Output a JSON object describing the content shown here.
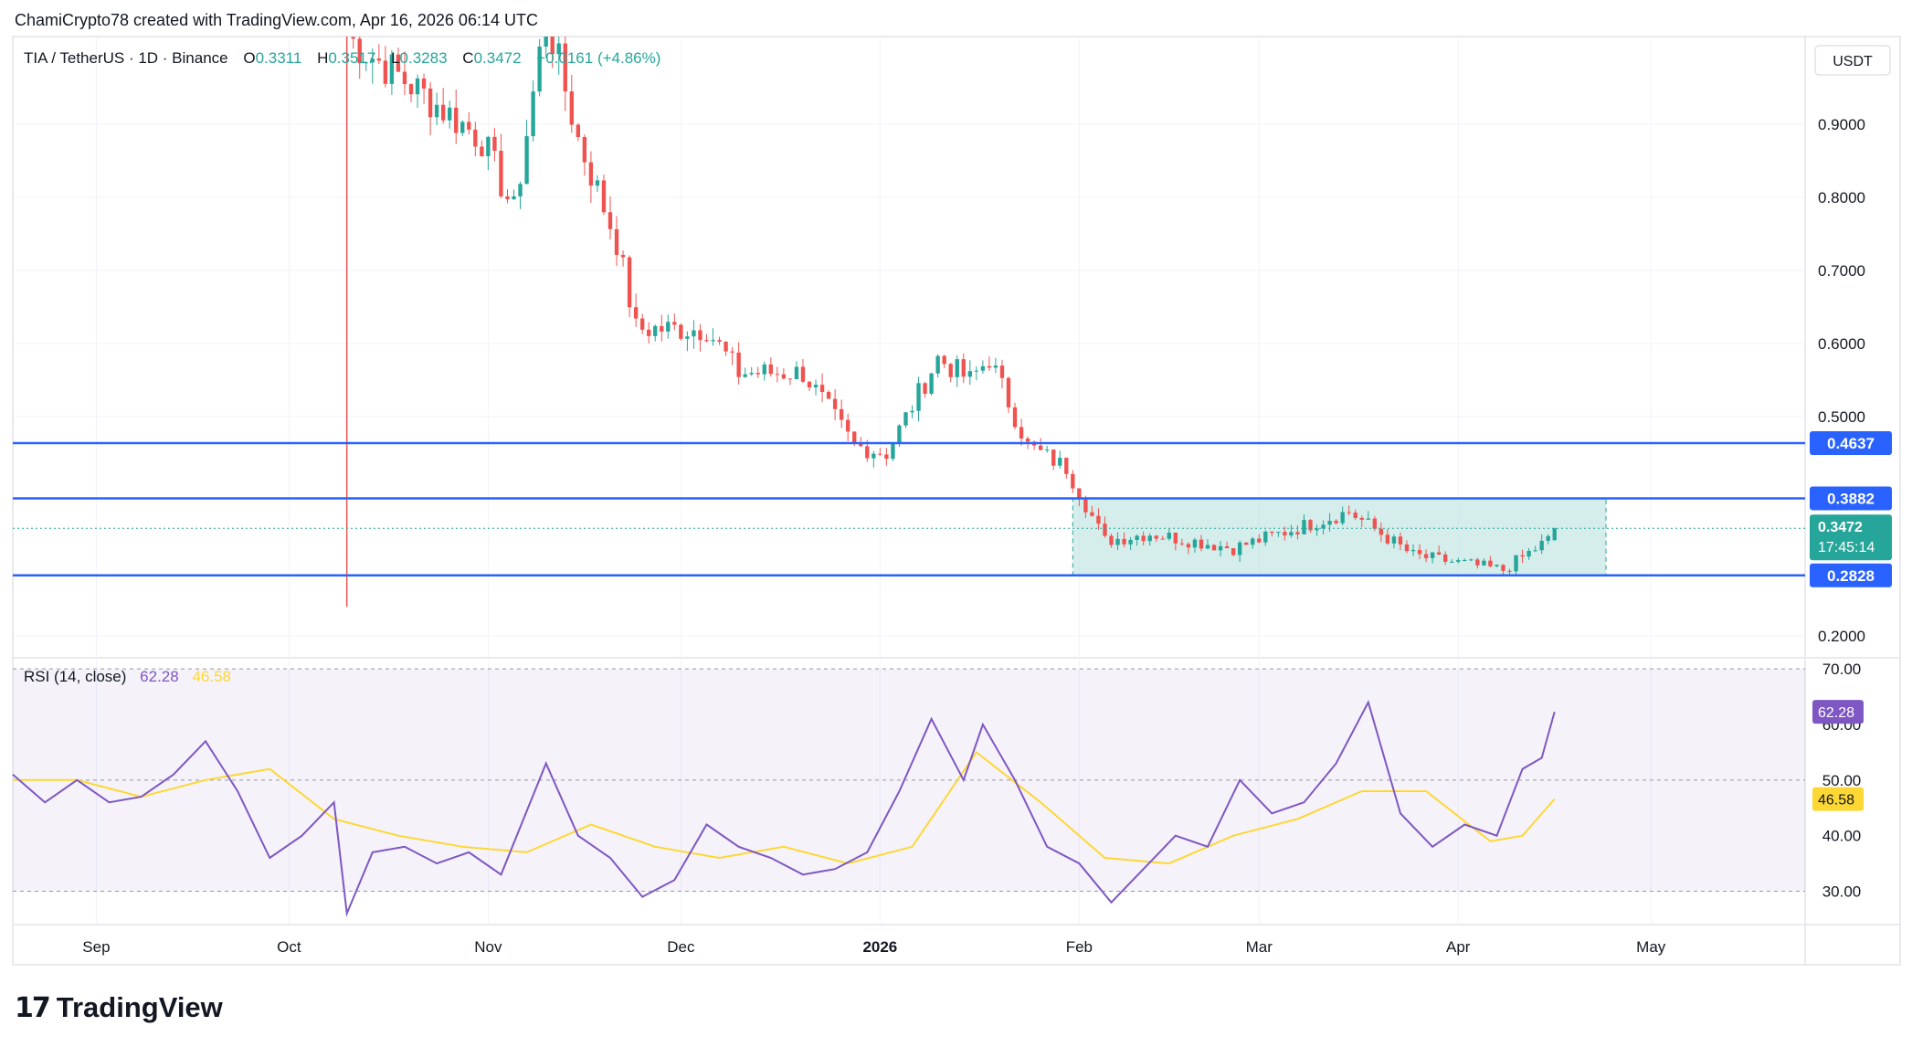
{
  "header": {
    "credit": "ChamiCrypto78 created with TradingView.com, Apr 16, 2026 06:14 UTC"
  },
  "legend": {
    "symbol": "TIA / TetherUS · 1D · Binance",
    "o_label": "O",
    "o_value": "0.3311",
    "h_label": "H",
    "h_value": "0.3517",
    "l_label": "L",
    "l_value": "0.3283",
    "c_label": "C",
    "c_value": "0.3472",
    "change": "+0.0161 (+4.86%)"
  },
  "price_axis": {
    "currency": "USDT",
    "ticks": [
      "0.9000",
      "0.8000",
      "0.7000",
      "0.6000",
      "0.5000",
      "0.2000"
    ],
    "last_price": "0.3472",
    "countdown": "17:45:14"
  },
  "levels": [
    {
      "label": "0.4637",
      "value": 0.4637
    },
    {
      "label": "0.3882",
      "value": 0.3882
    },
    {
      "label": "0.2828",
      "value": 0.2828
    }
  ],
  "rsi": {
    "title": "RSI (14, close)",
    "value_label": "62.28",
    "ma_label": "46.58",
    "ticks": [
      "70.00",
      "60.00",
      "50.00",
      "40.00",
      "30.00"
    ],
    "rsi_tag": "62.28",
    "ma_tag": "46.58"
  },
  "time_axis": {
    "labels": [
      "Sep",
      "Oct",
      "Nov",
      "Dec",
      "2026",
      "Feb",
      "Mar",
      "Apr",
      "May"
    ]
  },
  "brand": {
    "name": "TradingView",
    "mark": "17"
  },
  "colors": {
    "up": "#26a69a",
    "down": "#ef5350",
    "level": "#2962ff",
    "rsi": "#7e57c2",
    "rsi_ma": "#fdd835",
    "range": "#b2dfdb"
  },
  "chart_data": [
    {
      "type": "candlestick",
      "symbol": "TIA / TetherUS",
      "interval": "1D",
      "ylim": [
        0.17,
        1.02
      ],
      "x_range": [
        "2025-08-19",
        "2026-05-25"
      ],
      "range_box": {
        "from": "2026-01-31",
        "to": "2026-04-24",
        "low": 0.2828,
        "high": 0.3882
      },
      "last_price": 0.3472,
      "ohlc_anchors": [
        {
          "date": "2025-10-10",
          "close": 1.02,
          "low": 0.24
        },
        {
          "date": "2025-10-31",
          "close": 0.88
        },
        {
          "date": "2025-11-05",
          "close": 0.78
        },
        {
          "date": "2025-11-10",
          "close": 1.05
        },
        {
          "date": "2025-11-15",
          "close": 0.88
        },
        {
          "date": "2025-11-21",
          "close": 0.74
        },
        {
          "date": "2025-11-24",
          "close": 0.62
        },
        {
          "date": "2025-12-05",
          "close": 0.62
        },
        {
          "date": "2025-12-10",
          "close": 0.56
        },
        {
          "date": "2025-12-20",
          "close": 0.56
        },
        {
          "date": "2025-12-28",
          "close": 0.46
        },
        {
          "date": "2026-01-02",
          "close": 0.45
        },
        {
          "date": "2026-01-10",
          "close": 0.58
        },
        {
          "date": "2026-01-15",
          "close": 0.55
        },
        {
          "date": "2026-01-18",
          "close": 0.58
        },
        {
          "date": "2026-01-24",
          "close": 0.46
        },
        {
          "date": "2026-01-30",
          "close": 0.43
        },
        {
          "date": "2026-02-05",
          "close": 0.33
        },
        {
          "date": "2026-02-12",
          "close": 0.34
        },
        {
          "date": "2026-02-25",
          "close": 0.32
        },
        {
          "date": "2026-03-15",
          "close": 0.37
        },
        {
          "date": "2026-03-25",
          "close": 0.31
        },
        {
          "date": "2026-04-08",
          "close": 0.29
        },
        {
          "date": "2026-04-15",
          "close": 0.331
        },
        {
          "date": "2026-04-16",
          "close": 0.3472
        }
      ]
    },
    {
      "type": "line",
      "title": "RSI (14, close)",
      "ylim": [
        24,
        72
      ],
      "series": [
        {
          "name": "RSI",
          "points": [
            [
              "2025-08-19",
              51
            ],
            [
              "2025-08-24",
              46
            ],
            [
              "2025-08-29",
              50
            ],
            [
              "2025-09-03",
              46
            ],
            [
              "2025-09-08",
              47
            ],
            [
              "2025-09-13",
              51
            ],
            [
              "2025-09-18",
              57
            ],
            [
              "2025-09-23",
              48
            ],
            [
              "2025-09-28",
              36
            ],
            [
              "2025-10-03",
              40
            ],
            [
              "2025-10-08",
              46
            ],
            [
              "2025-10-10",
              26
            ],
            [
              "2025-10-14",
              37
            ],
            [
              "2025-10-19",
              38
            ],
            [
              "2025-10-24",
              35
            ],
            [
              "2025-10-29",
              37
            ],
            [
              "2025-11-03",
              33
            ],
            [
              "2025-11-10",
              53
            ],
            [
              "2025-11-15",
              40
            ],
            [
              "2025-11-20",
              36
            ],
            [
              "2025-11-25",
              29
            ],
            [
              "2025-11-30",
              32
            ],
            [
              "2025-12-05",
              42
            ],
            [
              "2025-12-10",
              38
            ],
            [
              "2025-12-15",
              36
            ],
            [
              "2025-12-20",
              33
            ],
            [
              "2025-12-25",
              34
            ],
            [
              "2025-12-30",
              37
            ],
            [
              "2026-01-04",
              48
            ],
            [
              "2026-01-09",
              61
            ],
            [
              "2026-01-14",
              50
            ],
            [
              "2026-01-17",
              60
            ],
            [
              "2026-01-22",
              50
            ],
            [
              "2026-01-27",
              38
            ],
            [
              "2026-02-01",
              35
            ],
            [
              "2026-02-06",
              28
            ],
            [
              "2026-02-11",
              34
            ],
            [
              "2026-02-16",
              40
            ],
            [
              "2026-02-21",
              38
            ],
            [
              "2026-02-26",
              50
            ],
            [
              "2026-03-03",
              44
            ],
            [
              "2026-03-08",
              46
            ],
            [
              "2026-03-13",
              53
            ],
            [
              "2026-03-18",
              64
            ],
            [
              "2026-03-23",
              44
            ],
            [
              "2026-03-28",
              38
            ],
            [
              "2026-04-02",
              42
            ],
            [
              "2026-04-07",
              40
            ],
            [
              "2026-04-11",
              52
            ],
            [
              "2026-04-14",
              54
            ],
            [
              "2026-04-16",
              62.28
            ]
          ]
        },
        {
          "name": "RSI-based MA",
          "points": [
            [
              "2025-08-19",
              50
            ],
            [
              "2025-08-29",
              50
            ],
            [
              "2025-09-08",
              47
            ],
            [
              "2025-09-18",
              50
            ],
            [
              "2025-09-28",
              52
            ],
            [
              "2025-10-08",
              43
            ],
            [
              "2025-10-18",
              40
            ],
            [
              "2025-10-28",
              38
            ],
            [
              "2025-11-07",
              37
            ],
            [
              "2025-11-17",
              42
            ],
            [
              "2025-11-27",
              38
            ],
            [
              "2025-12-07",
              36
            ],
            [
              "2025-12-17",
              38
            ],
            [
              "2025-12-27",
              35
            ],
            [
              "2026-01-06",
              38
            ],
            [
              "2026-01-16",
              55
            ],
            [
              "2026-01-26",
              46
            ],
            [
              "2026-02-05",
              36
            ],
            [
              "2026-02-15",
              35
            ],
            [
              "2026-02-25",
              40
            ],
            [
              "2026-03-07",
              43
            ],
            [
              "2026-03-17",
              48
            ],
            [
              "2026-03-27",
              48
            ],
            [
              "2026-04-06",
              39
            ],
            [
              "2026-04-11",
              40
            ],
            [
              "2026-04-16",
              46.58
            ]
          ]
        }
      ],
      "guides": [
        70,
        50,
        30
      ]
    }
  ]
}
